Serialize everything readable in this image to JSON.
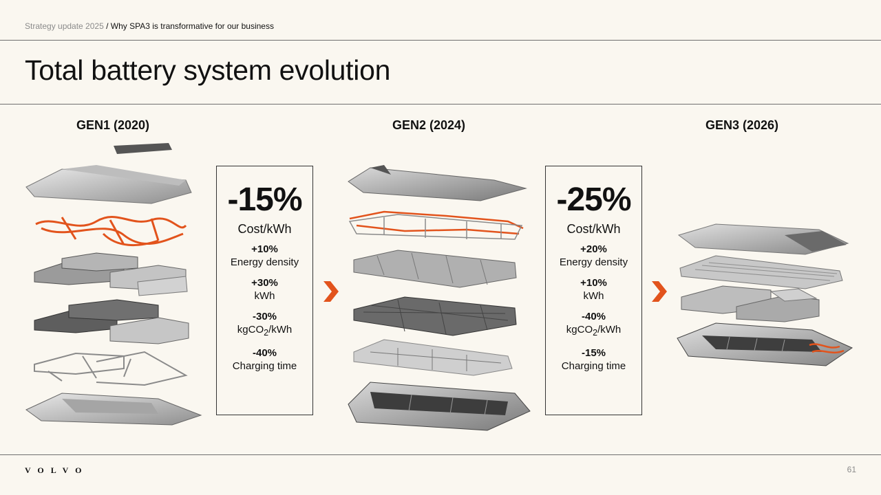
{
  "header": {
    "breadcrumb_section": "Strategy update 2025",
    "breadcrumb_separator": " / ",
    "breadcrumb_current": "Why SPA3 is transformative for our business",
    "title": "Total battery system evolution"
  },
  "generations": [
    {
      "title": "GEN1 (2020)"
    },
    {
      "title": "GEN2 (2024)"
    },
    {
      "title": "GEN3 (2026)"
    }
  ],
  "transitions": [
    {
      "headline": "-15%",
      "headline_label": "Cost/kWh",
      "stats": [
        {
          "value": "+10%",
          "label": "Energy density"
        },
        {
          "value": "+30%",
          "label": "kWh"
        },
        {
          "value": "-30%",
          "label": "kgCO2/kWh"
        },
        {
          "value": "-40%",
          "label": "Charging time"
        }
      ]
    },
    {
      "headline": "-25%",
      "headline_label": "Cost/kWh",
      "stats": [
        {
          "value": "+20%",
          "label": "Energy density"
        },
        {
          "value": "+10%",
          "label": "kWh"
        },
        {
          "value": "-40%",
          "label": "kgCO2/kWh"
        },
        {
          "value": "-15%",
          "label": "Charging time"
        }
      ]
    }
  ],
  "footer": {
    "logo": "VOLVO",
    "page_number": "61"
  },
  "colors": {
    "background": "#faf7f0",
    "accent_orange": "#e2531c",
    "text": "#111111",
    "muted": "#8b8b8b"
  }
}
